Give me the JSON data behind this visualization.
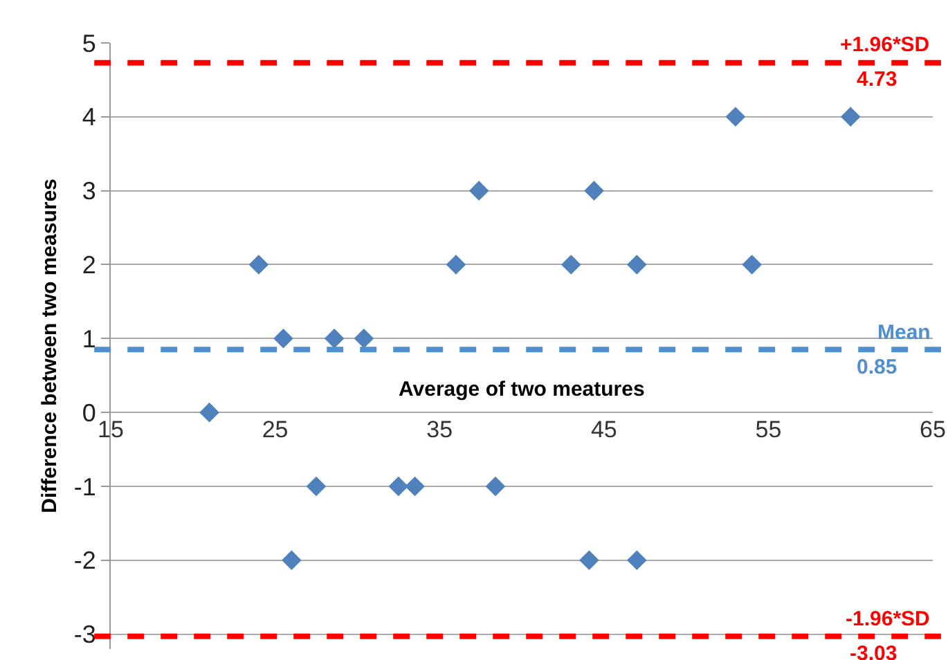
{
  "chart_data": {
    "type": "scatter",
    "xlabel": "Average of two meatures",
    "ylabel": "Difference between two measures",
    "series": [
      {
        "color": "#4f81bd",
        "x": [
          24,
          36,
          43,
          47,
          54,
          37.4,
          44.4,
          53,
          60,
          25.5,
          28.6,
          30.4,
          21,
          27.5,
          32.5,
          33.5,
          38.4,
          26,
          44.1,
          47
        ],
        "values": [
          2,
          2,
          2,
          2,
          2,
          3,
          3,
          4,
          4,
          1,
          1,
          1,
          0,
          -1,
          -1,
          -1,
          -1,
          -2,
          -2,
          -2
        ]
      }
    ],
    "marker": "diamond",
    "xlim": [
      15,
      65
    ],
    "xticks": [
      15,
      25,
      35,
      45,
      55,
      65
    ],
    "ylim": [
      -3.2,
      5
    ],
    "yticks": [
      -3,
      -2,
      -1,
      0,
      1,
      2,
      3,
      4,
      5
    ],
    "grid": "y",
    "legend": false,
    "ref_lines": [
      {
        "axis": "y",
        "value": 4.73,
        "label": "+1.96*SD",
        "color": "#ff0000",
        "line_style": "dashed"
      },
      {
        "axis": "y",
        "value": 0.85,
        "label": "Mean",
        "color": "#4f8fd0",
        "line_style": "dashed"
      },
      {
        "axis": "y",
        "value": -3.03,
        "label": "-1.96*SD",
        "color": "#ff0000",
        "line_style": "dashed"
      }
    ],
    "annotations": [
      {
        "text": "4.73",
        "y": 4.73
      },
      {
        "text": "0.85",
        "y": 0.85
      },
      {
        "text": "-3.03",
        "y": -3.03
      }
    ]
  }
}
